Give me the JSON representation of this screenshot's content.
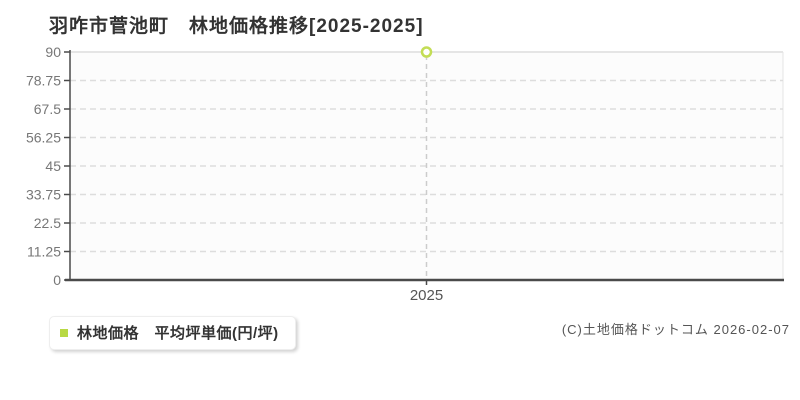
{
  "title": "羽咋市菅池町　林地価格推移[2025-2025]",
  "chart_data": {
    "type": "line",
    "categories": [
      "2025"
    ],
    "series": [
      {
        "name": "林地価格",
        "values": [
          90
        ]
      }
    ],
    "title": "羽咋市菅池町 林地価格推移[2025-2025]",
    "xlabel": "",
    "ylabel": "",
    "ylim": [
      0,
      90
    ],
    "yticks": [
      0,
      11.25,
      22.5,
      33.75,
      45,
      56.25,
      67.5,
      78.75,
      90
    ],
    "ytick_labels": [
      "0",
      "11.25",
      "22.5",
      "33.75",
      "45",
      "56.25",
      "67.5",
      "78.75",
      "90"
    ],
    "grid": "horizontal-dashed",
    "legend_position": "bottom-left",
    "colors": {
      "point_stroke": "#c3dd55",
      "point_fill": "#ffffff",
      "plot_bg": "#fcfcfc",
      "gridline": "#dddddd",
      "plot_border_light": "#e5e5e5",
      "axis_dark": "#4a4a4a",
      "tick_label": "#777777",
      "x_label": "#555555",
      "drop_line": "#cccccc"
    }
  },
  "legend": {
    "swatch_color": "#b8d944",
    "label": "林地価格　平均坪単価(円/坪)"
  },
  "footer": {
    "copyright": "(C)土地価格ドットコム 2026-02-07"
  }
}
